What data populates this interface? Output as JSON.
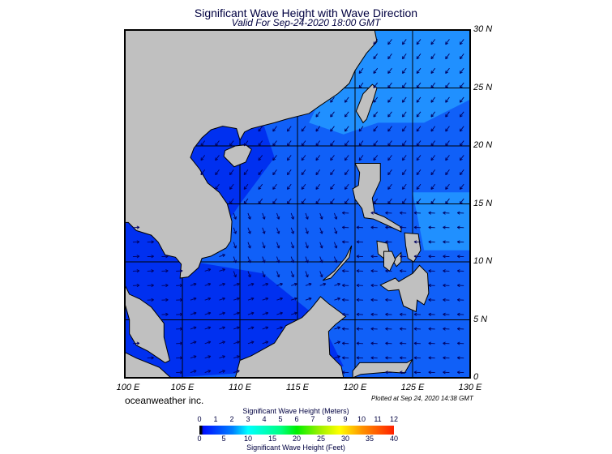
{
  "title": "Significant Wave Height with Wave Direction",
  "subtitle": "Valid For Sep-24-2020 18:00 GMT",
  "map": {
    "region": "South China Sea",
    "lon_range": [
      100,
      130
    ],
    "lat_range": [
      0,
      30
    ],
    "lon_labels": [
      "100 E",
      "105 E",
      "110 E",
      "115 E",
      "120 E",
      "125 E",
      "130 E"
    ],
    "lat_labels": [
      "30 N",
      "25 N",
      "20 N",
      "15 N",
      "10 N",
      "5 N",
      "0"
    ],
    "colors": {
      "land": "#c0c0c0",
      "deep": "#0030f0",
      "mid": "#1060f8",
      "light": "#2090ff",
      "arrow": "#000060"
    }
  },
  "brand": "oceanweather inc.",
  "plotted": "Plotted at Sep 24, 2020 14:38 GMT",
  "colorbar": {
    "meters_title": "Significant Wave Height (Meters)",
    "meters_ticks": [
      "0",
      "1",
      "2",
      "3",
      "4",
      "5",
      "6",
      "7",
      "8",
      "9",
      "10",
      "11",
      "12"
    ],
    "feet_ticks": [
      "0",
      "5",
      "10",
      "15",
      "20",
      "25",
      "30",
      "35",
      "40"
    ],
    "feet_title": "Significant Wave Height (Feet)"
  }
}
